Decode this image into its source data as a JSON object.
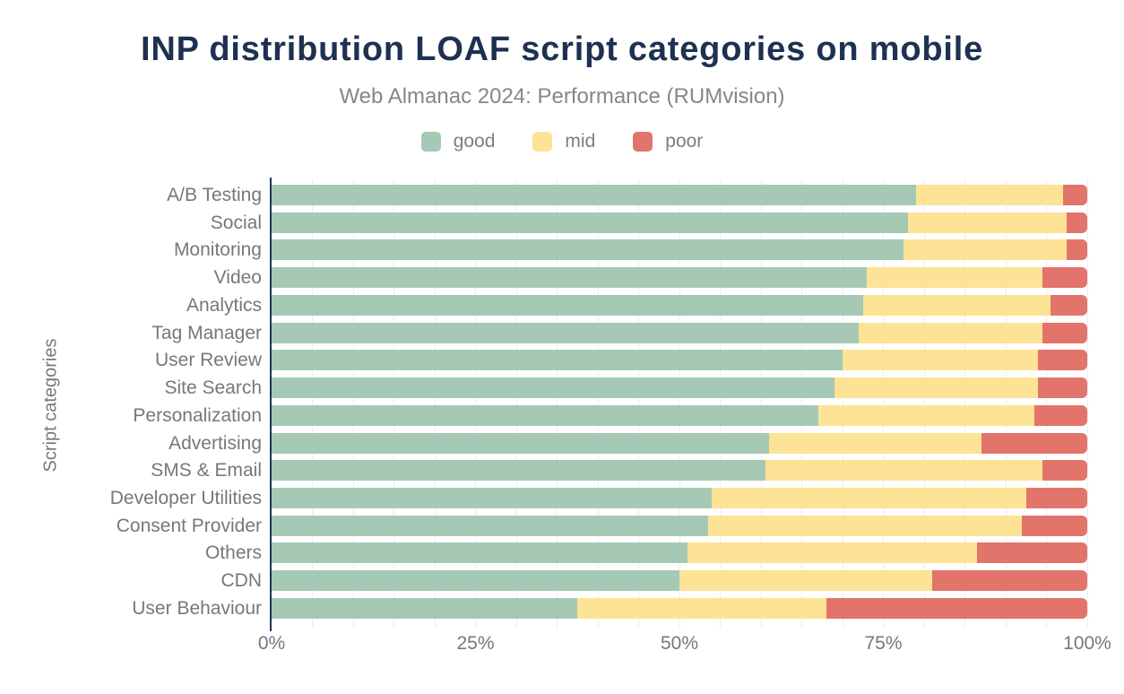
{
  "header": {
    "title": "INP distribution LOAF script categories on mobile",
    "subtitle": "Web Almanac 2024: Performance (RUMvision)"
  },
  "colors": {
    "title": "#1e3151",
    "axis_line": "#223457",
    "text_gray": "#74787e",
    "gridline": "#ededf1",
    "good": "#a6c9b5",
    "mid": "#fde395",
    "poor": "#e2746c"
  },
  "chart_data": {
    "type": "bar",
    "orientation": "horizontal",
    "stacked": true,
    "unit": "%",
    "title": "INP distribution LOAF script categories on mobile",
    "subtitle": "Web Almanac 2024: Performance (RUMvision)",
    "ylabel": "Script categories",
    "xlabel": "",
    "xlim": [
      0,
      100
    ],
    "grid_step": 5,
    "grid": true,
    "legend_position": "top",
    "x_tick_values": [
      0,
      25,
      50,
      75,
      100
    ],
    "x_tick_labels": [
      "0%",
      "25%",
      "50%",
      "75%",
      "100%"
    ],
    "categories": [
      "A/B Testing",
      "Social",
      "Monitoring",
      "Video",
      "Analytics",
      "Tag Manager",
      "User Review",
      "Site Search",
      "Personalization",
      "Advertising",
      "SMS & Email",
      "Developer Utilities",
      "Consent Provider",
      "Others",
      "CDN",
      "User Behaviour"
    ],
    "series": [
      {
        "name": "good",
        "color": "#a6c9b5",
        "values": [
          79,
          78,
          77.5,
          73,
          72.5,
          72,
          70,
          69,
          67,
          61,
          60.5,
          54,
          53.5,
          51,
          50,
          37.5
        ]
      },
      {
        "name": "mid",
        "color": "#fde395",
        "values": [
          18,
          19.5,
          20,
          21.5,
          23,
          22.5,
          24,
          25,
          26.5,
          26,
          34,
          38.5,
          38.5,
          35.5,
          31,
          30.5
        ]
      },
      {
        "name": "poor",
        "color": "#e2746c",
        "values": [
          3,
          2.5,
          2.5,
          5.5,
          4.5,
          5.5,
          6,
          6,
          6.5,
          13,
          5.5,
          7.5,
          8,
          13.5,
          19,
          32
        ]
      }
    ]
  }
}
